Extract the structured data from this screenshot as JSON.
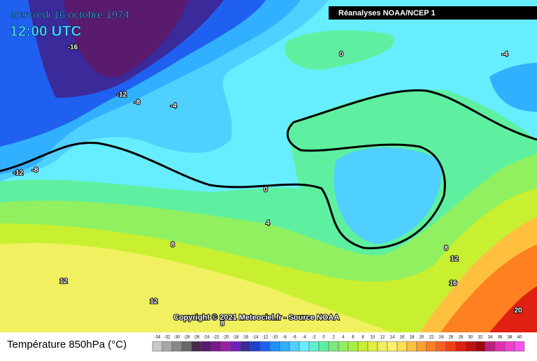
{
  "header": {
    "date": "Mercredi 16 octobre 1974",
    "time": "12:00 UTC",
    "source": "Réanalyses NOAA/NCEP 1"
  },
  "copyright": "Copyright © 2021 Meteociel.fr - Source NOAA",
  "contour_labels": [
    -16,
    -12,
    -8,
    -4,
    0,
    -4,
    0,
    4,
    8,
    12,
    -12,
    -8,
    12,
    8,
    12,
    16,
    20,
    8
  ],
  "legend": {
    "title": "Température 850hPa (°C)",
    "ticks": [
      -34,
      -32,
      -30,
      -28,
      -26,
      -24,
      -22,
      -20,
      -18,
      -16,
      -14,
      -12,
      -10,
      -8,
      -6,
      -4,
      -2,
      0,
      2,
      4,
      6,
      8,
      10,
      12,
      14,
      16,
      18,
      20,
      22,
      24,
      26,
      28,
      30,
      32,
      34,
      36,
      38,
      40
    ],
    "colors": [
      "#c8c8c8",
      "#a8a8a8",
      "#888888",
      "#686868",
      "#4a2a4a",
      "#5a1a6e",
      "#7a1a8a",
      "#9a20a8",
      "#7020c0",
      "#3a2a9a",
      "#2040d0",
      "#2060f0",
      "#1e90ff",
      "#30b0ff",
      "#50d0ff",
      "#66eeff",
      "#60f0d0",
      "#5ef0a0",
      "#7de880",
      "#90f060",
      "#a8f040",
      "#c8f030",
      "#e0f040",
      "#f0f060",
      "#fff070",
      "#ffe050",
      "#ffc040",
      "#ffa030",
      "#ff8020",
      "#ff6020",
      "#f04018",
      "#e02010",
      "#c01010",
      "#a00810",
      "#c02080",
      "#e030b0",
      "#f040d0",
      "#ff50f0"
    ]
  }
}
